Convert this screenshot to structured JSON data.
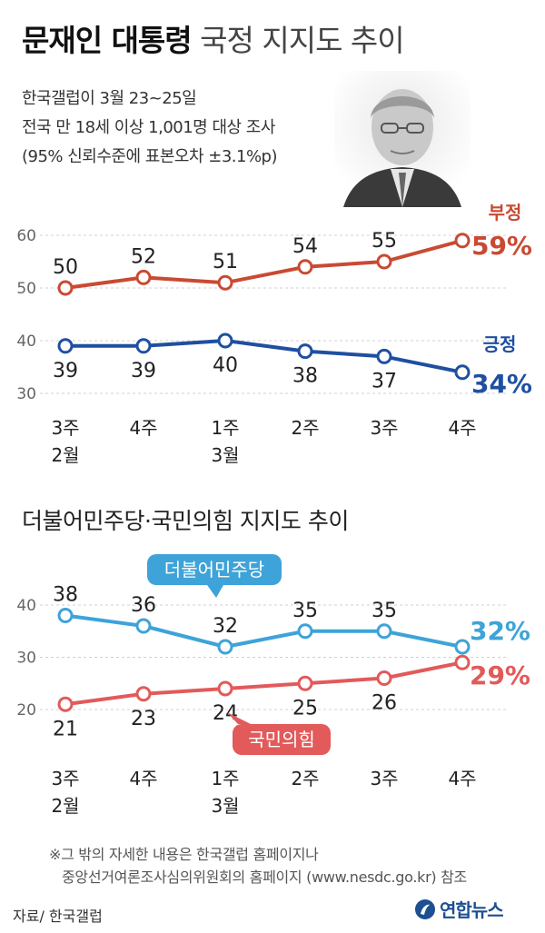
{
  "header": {
    "title_bold": "문재인 대통령",
    "title_light": "국정 지지도 추이",
    "survey_line1": "한국갤럽이 3월 23~25일",
    "survey_line2": "전국 만 18세 이상 1,001명 대상 조사",
    "survey_line3": "(95% 신뢰수준에 표본오차 ±3.1%p)"
  },
  "section2": {
    "title": "더불어민주당·국민의힘 지지도 추이"
  },
  "footer": {
    "note_line1": "※그 밖의 자세한 내용은 한국갤럽 홈페이지나",
    "note_line2": "중앙선거여론조사심의위원회의 홈페이지 (www.nesdc.go.kr) 참조",
    "source": "자료/ 한국갤럽",
    "logo_text": "연합뉴스"
  },
  "colors": {
    "negative": "#c94a33",
    "positive": "#1f4fa0",
    "democratic": "#3ea3d8",
    "ppp": "#e25a5a",
    "axis_text": "#666666",
    "logo": "#1d4f91"
  },
  "chart_data": [
    {
      "type": "line",
      "x": [
        "3주 2월",
        "4주",
        "1주 3월",
        "2주",
        "3주",
        "4주"
      ],
      "x_top": [
        "3주",
        "4주",
        "1주",
        "2주",
        "3주",
        "4주"
      ],
      "x_bottom": [
        "2월",
        "",
        "3월",
        "",
        "",
        ""
      ],
      "yticks": [
        60,
        50,
        40,
        30
      ],
      "ylim": [
        30,
        60
      ],
      "series": [
        {
          "name": "부정",
          "end_label": "59%",
          "color": "#c94a33",
          "values": [
            50,
            52,
            51,
            54,
            55,
            59
          ],
          "label_position": "above"
        },
        {
          "name": "긍정",
          "end_label": "34%",
          "color": "#1f4fa0",
          "values": [
            39,
            39,
            40,
            38,
            37,
            34
          ],
          "label_position": "below"
        }
      ]
    },
    {
      "type": "line",
      "x": [
        "3주 2월",
        "4주",
        "1주 3월",
        "2주",
        "3주",
        "4주"
      ],
      "x_top": [
        "3주",
        "4주",
        "1주",
        "2주",
        "3주",
        "4주"
      ],
      "x_bottom": [
        "2월",
        "",
        "3월",
        "",
        "",
        ""
      ],
      "yticks": [
        40,
        30,
        20
      ],
      "ylim": [
        20,
        40
      ],
      "series": [
        {
          "name": "더불어민주당",
          "end_label": "32%",
          "color": "#3ea3d8",
          "values": [
            38,
            36,
            32,
            35,
            35,
            32
          ],
          "label_position": "above"
        },
        {
          "name": "국민의힘",
          "end_label": "29%",
          "color": "#e25a5a",
          "values": [
            21,
            23,
            24,
            25,
            26,
            29
          ],
          "label_position": "below"
        }
      ]
    }
  ]
}
